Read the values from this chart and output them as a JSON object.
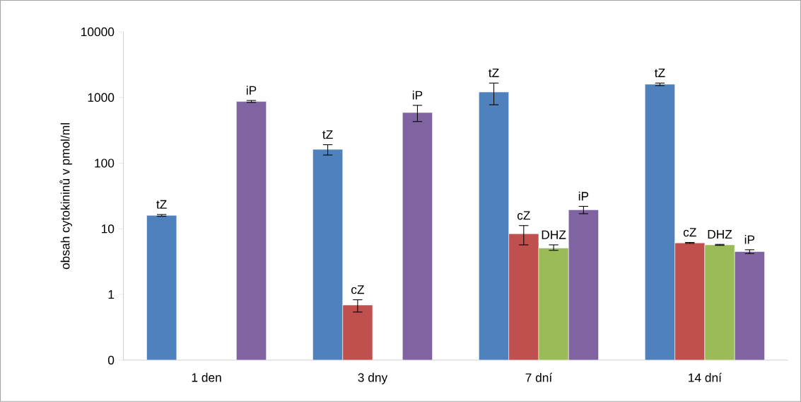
{
  "chart_data": {
    "type": "bar",
    "ylabel": "obsah cytokininů v pmol/ml",
    "categories": [
      "1 den",
      "3 dny",
      "7 dní",
      "14 dní"
    ],
    "series": [
      {
        "name": "tZ",
        "color": "#4f81bd",
        "values": [
          16,
          162,
          1210,
          1590
        ],
        "errors": [
          [
            15.5,
            16.5
          ],
          [
            133,
            191
          ],
          [
            775,
            1660
          ],
          [
            1520,
            1660
          ]
        ]
      },
      {
        "name": "cZ",
        "color": "#c0504d",
        "values": [
          null,
          0.69,
          8.4,
          6.1
        ],
        "errors": [
          null,
          [
            0.54,
            0.83
          ],
          [
            5.7,
            11.2
          ],
          [
            6.0,
            6.2
          ]
        ]
      },
      {
        "name": "DHZ",
        "color": "#9bbb59",
        "values": [
          null,
          null,
          5.1,
          5.7
        ],
        "errors": [
          null,
          null,
          [
            4.7,
            5.7
          ],
          [
            5.6,
            5.8
          ]
        ]
      },
      {
        "name": "iP",
        "color": "#8064a2",
        "values": [
          870,
          590,
          19.5,
          4.5
        ],
        "errors": [
          [
            840,
            900
          ],
          [
            430,
            760
          ],
          [
            17,
            22
          ],
          [
            4.2,
            4.8
          ]
        ]
      }
    ],
    "log": "y",
    "ylim": [
      0.1,
      10000
    ],
    "yticks": [
      {
        "value": 0.1,
        "label": "0"
      },
      1,
      10,
      100,
      1000,
      10000
    ]
  }
}
